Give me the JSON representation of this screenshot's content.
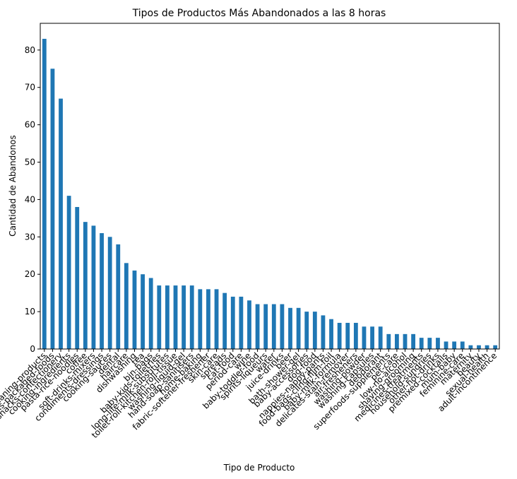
{
  "chart_data": {
    "type": "bar",
    "title": "Tipos de Productos Más Abandonados a las 8 horas",
    "xlabel": "Tipo de Producto",
    "ylabel": "Cantidad de Abandonos",
    "color": "#1f77b4",
    "categories": [
      "cleaning-products",
      "tins-packaged-foods",
      "snacks-confectionery",
      "cooking-ingredients",
      "pasta-rice-noodles",
      "coffee",
      "soft-drinks-mixers",
      "condiments-dressings",
      "cooking-sauces",
      "dental",
      "haircare",
      "dishwashing",
      "tea",
      "bin-bags",
      "baby-kids-toiletries",
      "long-life-milk-substitutes",
      "toilet-roll-kitchen-roll-tissue",
      "washing-liquid-gel",
      "hand-soap-sanitisers",
      "home-baking",
      "fabric-softener-freshener",
      "skin-care",
      "spreads",
      "cat-food",
      "period-care",
      "wine",
      "baby-toddler-food",
      "spirits-liqueurs",
      "water",
      "juice-drinks",
      "beer",
      "bath-shower-gel",
      "baby-accessories",
      "dog-food",
      "nappies-nappy-pants",
      "food-bags-cling-film-foil",
      "baby-milk-formula",
      "delicates-stain-remover",
      "air-fresheners",
      "washing-powder",
      "washing-capsules",
      "deodorant",
      "superfoods-supplements",
      "pet-care",
      "low-no-alcohol",
      "shaving-grooming",
      "medicines-treatments",
      "household-sundries",
      "other-hot-drinks",
      "premixed-cocktails",
      "mum-baby",
      "feminine-care",
      "maternity",
      "beauty",
      "sexual-health",
      "adult-incontinence"
    ],
    "values": [
      83,
      75,
      67,
      41,
      38,
      34,
      33,
      31,
      30,
      28,
      23,
      21,
      20,
      19,
      17,
      17,
      17,
      17,
      17,
      16,
      16,
      16,
      15,
      14,
      14,
      13,
      12,
      12,
      12,
      12,
      11,
      11,
      10,
      10,
      9,
      8,
      7,
      7,
      7,
      6,
      6,
      6,
      4,
      4,
      4,
      4,
      3,
      3,
      3,
      2,
      2,
      2,
      1,
      1,
      1,
      1
    ],
    "ylim": [
      0,
      87.15
    ],
    "yticks": [
      0,
      10,
      20,
      30,
      40,
      50,
      60,
      70,
      80
    ]
  }
}
